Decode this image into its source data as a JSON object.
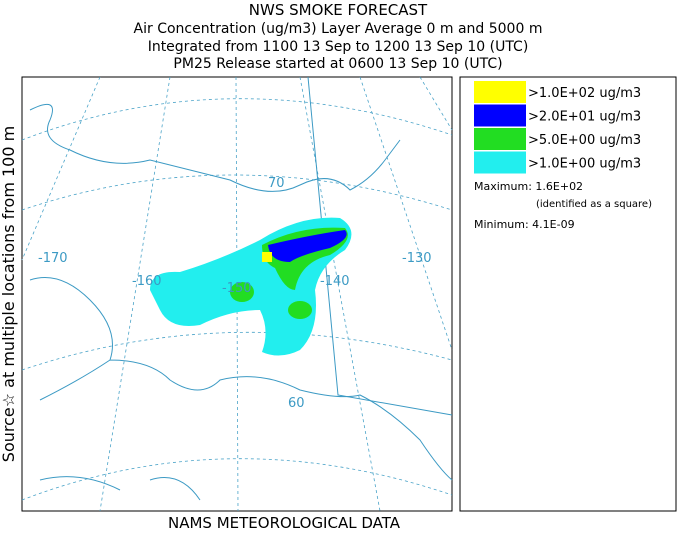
{
  "header": {
    "lines": [
      "NWS SMOKE FORECAST",
      "Air Concentration (ug/m3) Layer Average    0 m and  5000 m",
      "Integrated from 1100 13 Sep to 1200 13 Sep 10 (UTC)",
      "PM25 Release started at 0600 13 Sep 10 (UTC)"
    ]
  },
  "side_label": "Source☆ at multiple locations  from  100 m",
  "footer": "NAMS METEOROLOGICAL DATA",
  "legend": {
    "items": [
      {
        "label": ">1.0E+02 ug/m3",
        "color": "#ffff00"
      },
      {
        "label": ">2.0E+01 ug/m3",
        "color": "#0000ff"
      },
      {
        "label": ">5.0E+00 ug/m3",
        "color": "#22dd22"
      },
      {
        "label": ">1.0E+00 ug/m3",
        "color": "#22eeee"
      }
    ]
  },
  "stats": {
    "maximum": "Maximum: 1.6E+02",
    "note": "(identified as a square)",
    "minimum": "Minimum: 4.1E-09"
  },
  "map": {
    "labels": [
      "-170",
      "-160",
      "-150",
      "-140",
      "-130",
      "70",
      "60"
    ]
  }
}
